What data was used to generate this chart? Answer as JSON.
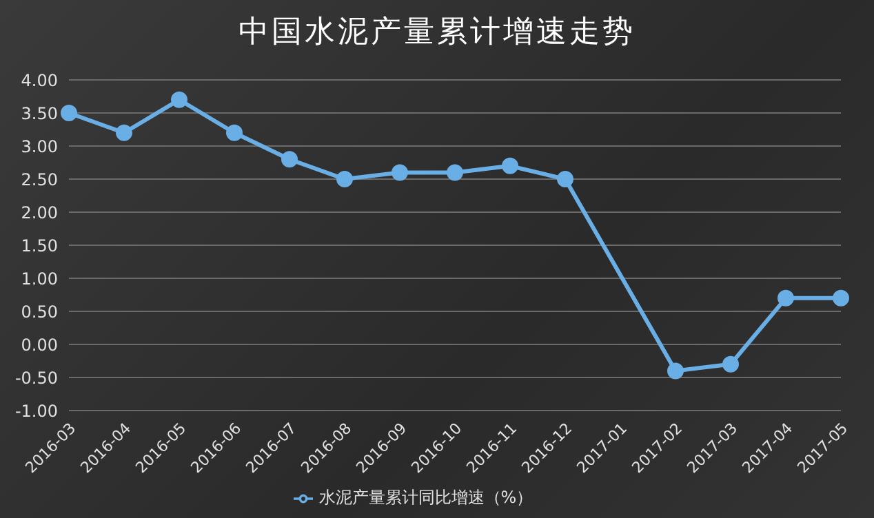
{
  "chart_data": {
    "type": "line",
    "title": "中国水泥产量累计增速走势",
    "categories": [
      "2016-03",
      "2016-04",
      "2016-05",
      "2016-06",
      "2016-07",
      "2016-08",
      "2016-09",
      "2016-10",
      "2016-11",
      "2016-12",
      "2017-01",
      "2017-02",
      "2017-03",
      "2017-04",
      "2017-05"
    ],
    "series": [
      {
        "name": "水泥产量累计同比增速（%）",
        "color": "#6aaee6",
        "values": [
          3.5,
          3.2,
          3.7,
          3.2,
          2.8,
          2.5,
          2.6,
          2.6,
          2.7,
          2.5,
          null,
          -0.4,
          -0.3,
          0.7,
          0.7
        ]
      }
    ],
    "ylim": [
      -1,
      4
    ],
    "yticks": [
      {
        "value": -1,
        "label": "-1.00"
      },
      {
        "value": -0.5,
        "label": "-0.50"
      },
      {
        "value": 0,
        "label": "0.00"
      },
      {
        "value": 0.5,
        "label": "0.50"
      },
      {
        "value": 1,
        "label": "1.00"
      },
      {
        "value": 1.5,
        "label": "1.50"
      },
      {
        "value": 2,
        "label": "2.00"
      },
      {
        "value": 2.5,
        "label": "2.50"
      },
      {
        "value": 3,
        "label": "3.00"
      },
      {
        "value": 3.5,
        "label": "3.50"
      },
      {
        "value": 4,
        "label": "4.00"
      }
    ],
    "grid": "y",
    "legend": "bottom",
    "marker": "circle",
    "line_style": "solid"
  }
}
